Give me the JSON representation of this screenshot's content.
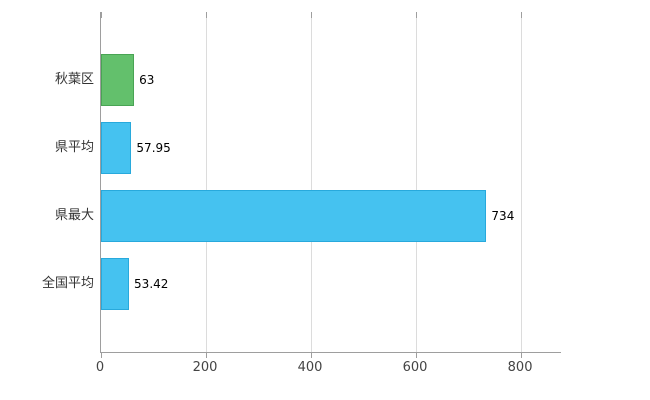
{
  "chart_data": {
    "type": "bar",
    "orientation": "horizontal",
    "title": "",
    "xlabel": "",
    "ylabel": "",
    "categories": [
      "秋葉区",
      "県平均",
      "県最大",
      "全国平均"
    ],
    "values": [
      63,
      57.95,
      734,
      53.42
    ],
    "value_labels": [
      "63",
      "57.95",
      "734",
      "53.42"
    ],
    "bar_colors": [
      "#63c06c",
      "#45c2f0",
      "#45c2f0",
      "#45c2f0"
    ],
    "bar_border_colors": [
      "#49a454",
      "#28a9dc",
      "#28a9dc",
      "#28a9dc"
    ],
    "xlim": [
      0,
      876
    ],
    "xticks": [
      0,
      200,
      400,
      600,
      800
    ],
    "xtick_labels": [
      "0",
      "200",
      "400",
      "600",
      "800"
    ],
    "grid": true,
    "legend": false
  },
  "colors": {
    "axis": "#9e9e9e",
    "grid": "#dcdcdc",
    "text": "#333333",
    "background": "#ffffff"
  }
}
